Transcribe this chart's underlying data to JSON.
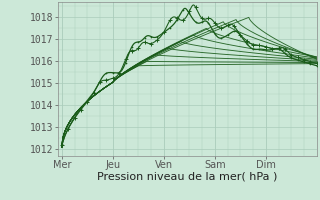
{
  "bg_color": "#cce8d8",
  "plot_bg_color": "#cce8d8",
  "grid_major_color": "#aaccbb",
  "grid_minor_color": "#bbddd0",
  "line_color": "#1a5c1a",
  "ylabel_values": [
    1012,
    1013,
    1014,
    1015,
    1016,
    1017,
    1018
  ],
  "ylim": [
    1011.7,
    1018.7
  ],
  "xlabel": "Pression niveau de la mer( hPa )",
  "day_labels": [
    "Mer",
    "Jeu",
    "Ven",
    "Sam",
    "Dim"
  ],
  "day_positions": [
    0,
    24,
    48,
    72,
    96
  ],
  "total_hours": 120,
  "xlabel_fontsize": 8,
  "tick_fontsize": 7,
  "line_width": 0.9,
  "marker_size": 2.5
}
